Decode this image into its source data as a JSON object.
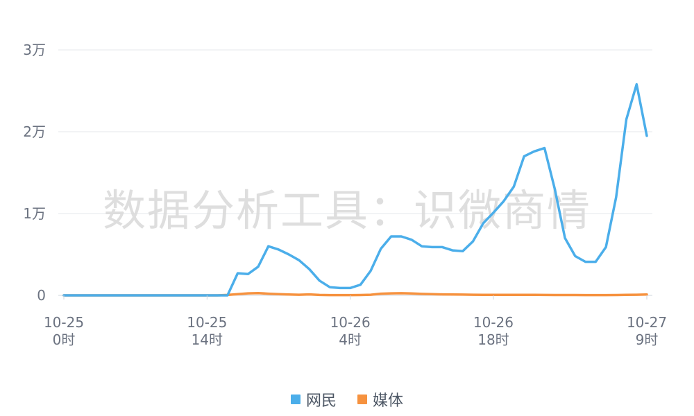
{
  "watermark": "数据分析工具：识微商情",
  "colors": {
    "网民": "#4baeea",
    "媒体": "#f6923f",
    "grid": "#e5e7eb",
    "axis": "#cfd4dc"
  },
  "chart_data": {
    "type": "line",
    "title": "",
    "xlabel": "",
    "ylabel": "",
    "ylim": [
      0,
      30000
    ],
    "y_ticks": [
      {
        "value": 0,
        "label": "0"
      },
      {
        "value": 10000,
        "label": "1万"
      },
      {
        "value": 20000,
        "label": "2万"
      },
      {
        "value": 30000,
        "label": "3万"
      }
    ],
    "x_ticks": [
      {
        "index": 0,
        "line1": "10-25",
        "line2": "0时"
      },
      {
        "index": 14,
        "line1": "10-25",
        "line2": "14时"
      },
      {
        "index": 28,
        "line1": "10-26",
        "line2": "4时"
      },
      {
        "index": 42,
        "line1": "10-26",
        "line2": "18时"
      },
      {
        "index": 57,
        "line1": "10-27",
        "line2": "9时"
      }
    ],
    "x": [
      "10-25 0时",
      "10-25 1时",
      "10-25 2时",
      "10-25 3时",
      "10-25 4时",
      "10-25 5时",
      "10-25 6时",
      "10-25 7时",
      "10-25 8时",
      "10-25 9时",
      "10-25 10时",
      "10-25 11时",
      "10-25 12时",
      "10-25 13时",
      "10-25 14时",
      "10-25 15时",
      "10-25 16时",
      "10-25 17时",
      "10-25 18时",
      "10-25 19时",
      "10-25 20时",
      "10-25 21时",
      "10-25 22时",
      "10-25 23时",
      "10-26 0时",
      "10-26 1时",
      "10-26 2时",
      "10-26 3时",
      "10-26 4时",
      "10-26 5时",
      "10-26 6时",
      "10-26 7时",
      "10-26 8时",
      "10-26 9时",
      "10-26 10时",
      "10-26 11时",
      "10-26 12时",
      "10-26 13时",
      "10-26 14时",
      "10-26 15时",
      "10-26 16时",
      "10-26 17时",
      "10-26 18时",
      "10-26 19时",
      "10-26 20时",
      "10-26 21时",
      "10-26 22时",
      "10-26 23时",
      "10-27 0时",
      "10-27 1时",
      "10-27 2时",
      "10-27 3时",
      "10-27 4时",
      "10-27 5时",
      "10-27 6时",
      "10-27 7时",
      "10-27 8时",
      "10-27 9时"
    ],
    "series": [
      {
        "name": "网民",
        "values": [
          0,
          0,
          0,
          0,
          0,
          0,
          0,
          0,
          0,
          0,
          0,
          0,
          0,
          0,
          0,
          0,
          0,
          2700,
          2600,
          3500,
          6000,
          5600,
          5000,
          4300,
          3200,
          1800,
          1000,
          900,
          900,
          1300,
          3000,
          5700,
          7200,
          7200,
          6800,
          6000,
          5900,
          5900,
          5500,
          5400,
          6600,
          8800,
          10100,
          11500,
          13300,
          17000,
          17600,
          18000,
          13000,
          7000,
          4800,
          4100,
          4100,
          5900,
          12000,
          21500,
          25800,
          19500
        ]
      },
      {
        "name": "媒体",
        "values": [
          0,
          0,
          0,
          0,
          0,
          0,
          0,
          0,
          0,
          0,
          0,
          0,
          0,
          0,
          0,
          0,
          50,
          150,
          250,
          280,
          200,
          150,
          100,
          80,
          120,
          50,
          30,
          30,
          30,
          40,
          80,
          200,
          250,
          260,
          230,
          180,
          150,
          120,
          100,
          90,
          80,
          70,
          60,
          60,
          60,
          60,
          60,
          50,
          40,
          40,
          40,
          30,
          30,
          30,
          40,
          60,
          80,
          100
        ]
      }
    ],
    "grid": true,
    "legend": "bottom-center"
  }
}
